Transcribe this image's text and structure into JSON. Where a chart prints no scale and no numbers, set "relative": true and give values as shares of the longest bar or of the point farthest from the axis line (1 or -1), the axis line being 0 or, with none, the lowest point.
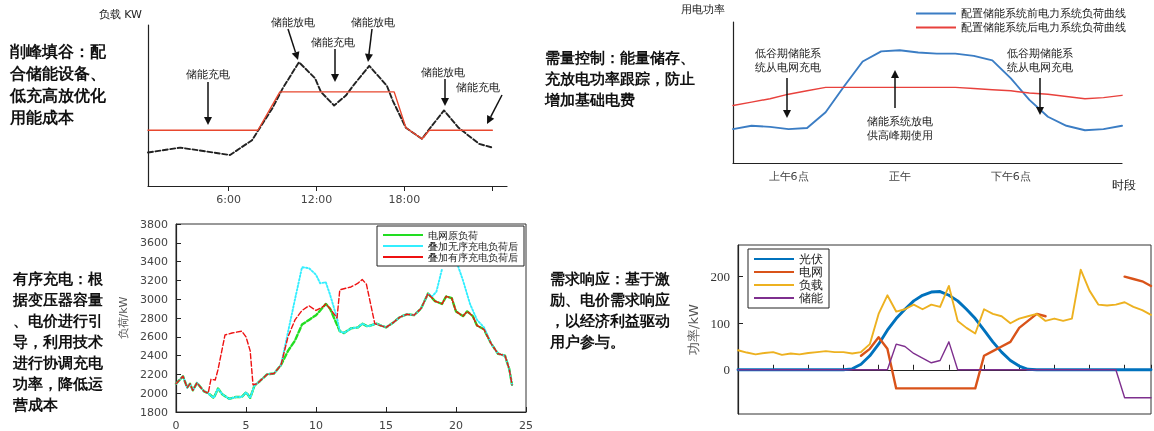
{
  "chart_data": [
    {
      "type": "line",
      "title": "削峰填谷：配合储能设备、低充高放优化用能成本",
      "ylabel": "负载 KW",
      "relative": true,
      "tick_labels": "x",
      "xlim": [
        0.5,
        25
      ],
      "xticks": [
        {
          "value": 6,
          "label": "6:00"
        },
        {
          "value": 12,
          "label": "12:00"
        },
        {
          "value": 18,
          "label": "18:00"
        },
        {
          "value": 24,
          "label": null
        }
      ],
      "series": [
        {
          "color": "#222222",
          "line_style": "dashed",
          "x": [
            0.5,
            2.7,
            6.1,
            7.6,
            9.0,
            9.7,
            10.8,
            11.9,
            12.3,
            13.2,
            14.0,
            14.5,
            15.6,
            16.8,
            17.2,
            18.1,
            19.2,
            19.7,
            20.7,
            21.7,
            23.1,
            24
          ],
          "values": [
            0.27,
            0.31,
            0.25,
            0.37,
            0.63,
            0.79,
            1.0,
            0.87,
            0.76,
            0.65,
            0.73,
            0.81,
            0.97,
            0.81,
            0.69,
            0.47,
            0.38,
            0.46,
            0.61,
            0.47,
            0.34,
            0.31
          ]
        },
        {
          "color": "#e8472e",
          "line_style": "solid",
          "x": [
            0.5,
            8.0,
            9.5,
            17.3,
            18.1,
            19.2,
            19.7,
            24
          ],
          "values": [
            0.45,
            0.45,
            0.76,
            0.76,
            0.47,
            0.38,
            0.45,
            0.45
          ]
        }
      ],
      "annotations": [
        "储能充电",
        "储能放电",
        "储能充电",
        "储能放电",
        "储能放电",
        "储能充电"
      ]
    },
    {
      "type": "line",
      "title": "需量控制：能量储存、充放电功率跟踪，防止增加基础电费",
      "xlabel": "时段",
      "ylabel": "用电功率",
      "relative": true,
      "tick_labels": "x",
      "legend": "top right",
      "categories": [
        null,
        null,
        null,
        "上午6点",
        null,
        null,
        null,
        null,
        null,
        "正午",
        null,
        null,
        null,
        null,
        null,
        "下午6点",
        null,
        null,
        null,
        null,
        null,
        null
      ],
      "series": [
        {
          "name": "配置储能系统前电力系统负荷曲线",
          "color": "#3b7dc4",
          "values": [
            0.3,
            0.33,
            0.32,
            0.3,
            0.31,
            0.45,
            0.68,
            0.9,
            0.99,
            1.0,
            0.98,
            0.97,
            0.97,
            0.95,
            0.91,
            0.75,
            0.56,
            0.41,
            0.33,
            0.29,
            0.3,
            0.33
          ]
        },
        {
          "name": "配置储能系统后电力系统负荷曲线",
          "color": "#e8413c",
          "values": [
            0.51,
            0.54,
            0.57,
            0.61,
            0.64,
            0.67,
            0.67,
            0.67,
            0.67,
            0.67,
            0.67,
            0.67,
            0.67,
            0.66,
            0.65,
            0.64,
            0.62,
            0.61,
            0.59,
            0.57,
            0.58,
            0.6
          ]
        }
      ],
      "annotations": [
        "低谷期储能系统从电网充电",
        "储能系统放电供高峰期使用",
        "低谷期储能系统从电网充电"
      ]
    },
    {
      "type": "line",
      "title": "有序充电：根据变压器容量、电价进行引导，利用技术进行协调充电功率，降低运营成本",
      "ylabel": "负荷/kW",
      "legend": "top right",
      "xlim": [
        0,
        25
      ],
      "xticks": [
        0,
        5,
        10,
        15,
        20,
        25
      ],
      "ylim": [
        1800,
        3800
      ],
      "yticks": [
        1800,
        2000,
        2200,
        2400,
        2600,
        2800,
        3000,
        3200,
        3400,
        3600,
        3800
      ],
      "series": [
        {
          "name": "电网原负荷",
          "color": "#22dd22",
          "line_style": "dashed",
          "x": [
            0,
            0.5,
            0.8,
            1.0,
            1.2,
            1.5,
            2.0,
            2.3,
            2.7,
            3.0,
            3.3,
            3.8,
            4.3,
            4.7,
            5.0,
            5.3,
            5.6,
            6.0,
            6.5,
            7.0,
            7.5,
            8.0,
            8.5,
            9.0,
            9.5,
            10.0,
            10.3,
            10.7,
            11.0,
            11.7,
            12.0,
            12.5,
            13.0,
            13.3,
            13.7,
            14.3,
            15.0,
            15.5,
            16.0,
            16.5,
            17.0,
            17.5,
            18.0,
            18.5,
            19.0,
            19.3,
            19.7,
            20.0,
            20.5,
            20.8,
            21.2,
            21.5,
            22.0,
            22.5,
            23.0,
            23.5,
            23.8,
            24.0
          ],
          "values": [
            2100,
            2180,
            2060,
            2100,
            2030,
            2110,
            2020,
            2000,
            1950,
            2050,
            1990,
            1940,
            1960,
            1960,
            2010,
            1950,
            2080,
            2130,
            2200,
            2210,
            2300,
            2450,
            2560,
            2730,
            2780,
            2830,
            2880,
            2950,
            2900,
            2660,
            2640,
            2690,
            2700,
            2740,
            2710,
            2740,
            2700,
            2750,
            2810,
            2840,
            2830,
            2900,
            3060,
            2980,
            2950,
            3030,
            3010,
            2870,
            2820,
            2870,
            2820,
            2720,
            2680,
            2530,
            2420,
            2400,
            2260,
            2090
          ]
        },
        {
          "name": "叠加无序充电负荷后",
          "color": "#33eeff",
          "line_style": "dotted",
          "x": [
            0,
            0.5,
            0.8,
            1.0,
            1.2,
            1.5,
            2.0,
            2.3,
            2.7,
            3.0,
            3.3,
            3.8,
            4.3,
            4.7,
            5.0,
            5.3,
            5.6,
            6.0,
            6.5,
            7.0,
            7.5,
            8.0,
            8.5,
            9.0,
            9.5,
            10.0,
            10.3,
            10.7,
            11.0,
            11.5,
            11.7,
            12.0,
            12.5,
            13.0,
            13.3,
            13.7,
            14.3,
            15.0,
            15.5,
            16.0,
            16.5,
            17.0,
            17.5,
            18.0,
            18.3,
            18.6,
            19.0,
            19.3,
            19.7,
            20.15,
            20.5,
            21.0,
            21.5,
            22.0,
            22.5,
            23.0,
            23.5,
            23.8,
            24.0
          ],
          "values": [
            2100,
            2180,
            2060,
            2100,
            2030,
            2110,
            2020,
            2000,
            1950,
            2050,
            1990,
            1940,
            1960,
            1960,
            2010,
            1950,
            2080,
            2130,
            2200,
            2210,
            2300,
            2650,
            3000,
            3340,
            3330,
            3260,
            3170,
            3180,
            3050,
            2800,
            2660,
            2640,
            2690,
            2700,
            2740,
            2710,
            2740,
            2700,
            2750,
            2810,
            2840,
            2830,
            2900,
            3060,
            3030,
            3080,
            3320,
            null,
            null,
            3350,
            3200,
            2950,
            2780,
            2700,
            2530,
            2420,
            2400,
            2260,
            2090
          ]
        },
        {
          "name": "叠加有序充电负荷后",
          "color": "#ee1111",
          "line_style": "dashed",
          "x": [
            0,
            0.5,
            0.8,
            1.0,
            1.2,
            1.5,
            2.0,
            2.3,
            2.5,
            2.8,
            3.0,
            3.5,
            4.0,
            4.7,
            5.0,
            5.3,
            5.5,
            5.8,
            6.0,
            6.5,
            7.0,
            7.5,
            8.0,
            8.5,
            9.0,
            9.5,
            10.0,
            10.5,
            10.7,
            11.0,
            11.5,
            11.7,
            12.5,
            13.0,
            13.3,
            13.6,
            13.9,
            14.2,
            15.0,
            15.5,
            16.0,
            16.5,
            17.0,
            17.5,
            18.0,
            18.5,
            19.0,
            19.3,
            19.7,
            20.0,
            20.5,
            20.8,
            21.2,
            21.5,
            22.0,
            22.5,
            23.0,
            23.5,
            23.8,
            24.0
          ],
          "values": [
            2100,
            2180,
            2060,
            2100,
            2030,
            2110,
            2020,
            2000,
            2150,
            2140,
            2250,
            2620,
            2640,
            2660,
            2600,
            2450,
            2090,
            2100,
            2130,
            2200,
            2210,
            2300,
            2600,
            2780,
            2880,
            2930,
            2880,
            2920,
            2950,
            2900,
            2800,
            3100,
            3130,
            3170,
            3210,
            3160,
            2950,
            2740,
            2700,
            2750,
            2810,
            2840,
            2830,
            2900,
            3060,
            2980,
            2950,
            3030,
            3010,
            2870,
            2820,
            2870,
            2820,
            2720,
            2680,
            2530,
            2420,
            2400,
            2260,
            2090
          ]
        }
      ]
    },
    {
      "type": "line",
      "title": "需求响应：基于激励、电价需求响应，以经济利益驱动用户参与。",
      "ylabel": "功率/kW",
      "legend": "top left",
      "tick_labels": "y",
      "ylim": [
        -95,
        268
      ],
      "yticks": [
        0,
        100,
        200
      ],
      "categories": [
        null,
        null,
        null,
        null,
        null,
        null,
        null,
        null,
        null,
        null,
        null,
        null,
        null,
        null,
        null,
        null,
        null,
        null,
        null,
        null,
        null,
        null,
        null,
        null,
        null,
        null,
        null,
        null,
        null,
        null,
        null,
        null,
        null,
        null,
        null,
        null,
        null,
        null,
        null,
        null,
        null,
        null,
        null,
        null,
        null,
        null,
        null,
        null
      ],
      "series": [
        {
          "name": "光伏",
          "color": "#0072bd",
          "values": [
            0,
            0,
            0,
            0,
            0,
            0,
            0,
            0,
            0,
            0,
            0,
            0,
            0,
            2,
            12,
            30,
            55,
            85,
            110,
            130,
            148,
            160,
            167,
            168,
            160,
            148,
            130,
            110,
            85,
            60,
            38,
            20,
            8,
            1,
            0,
            0,
            0,
            0,
            0,
            0,
            0,
            0,
            0,
            0,
            0,
            0,
            0,
            0
          ]
        },
        {
          "name": "电网",
          "color": "#d95319",
          "values": [
            null,
            null,
            null,
            null,
            null,
            null,
            null,
            null,
            null,
            null,
            null,
            null,
            null,
            null,
            30,
            45,
            70,
            45,
            -40,
            -40,
            -40,
            -40,
            -40,
            -40,
            -40,
            -40,
            -40,
            -40,
            30,
            40,
            50,
            60,
            90,
            105,
            120,
            115,
            null,
            null,
            null,
            null,
            null,
            null,
            null,
            null,
            200,
            195,
            190,
            180
          ]
        },
        {
          "name": "负载",
          "color": "#edb120",
          "values": [
            42,
            37,
            33,
            36,
            38,
            32,
            35,
            33,
            36,
            38,
            40,
            38,
            38,
            35,
            38,
            55,
            120,
            160,
            125,
            130,
            140,
            130,
            140,
            135,
            180,
            105,
            90,
            78,
            130,
            120,
            115,
            100,
            110,
            115,
            120,
            105,
            110,
            105,
            110,
            215,
            170,
            140,
            138,
            140,
            145,
            135,
            128,
            118
          ]
        },
        {
          "name": "储能",
          "color": "#7e2f8e",
          "values": [
            0,
            0,
            0,
            0,
            0,
            0,
            0,
            0,
            0,
            0,
            0,
            0,
            0,
            0,
            0,
            0,
            0,
            0,
            55,
            50,
            35,
            25,
            15,
            20,
            60,
            0,
            0,
            0,
            0,
            0,
            0,
            0,
            0,
            0,
            0,
            0,
            0,
            0,
            0,
            0,
            0,
            0,
            0,
            0,
            -60,
            -60,
            -60,
            -60
          ]
        }
      ]
    }
  ]
}
